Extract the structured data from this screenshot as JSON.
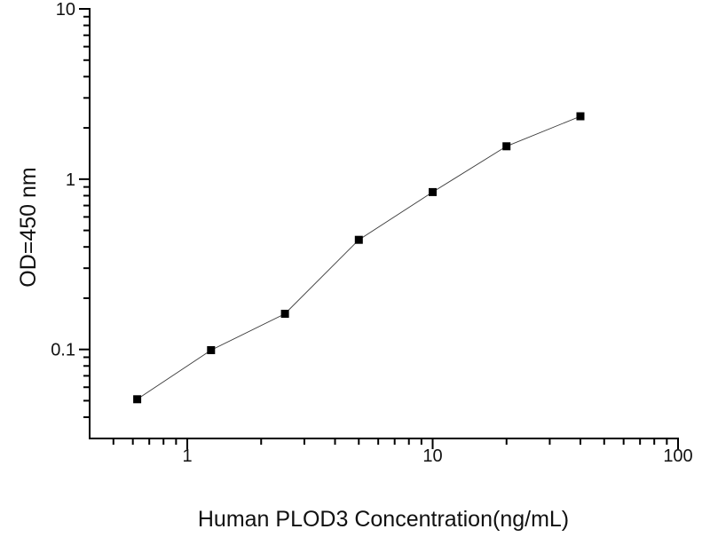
{
  "chart_data": {
    "type": "line",
    "x": [
      0.625,
      1.25,
      2.5,
      5,
      10,
      20,
      40
    ],
    "y": [
      0.051,
      0.099,
      0.162,
      0.44,
      0.84,
      1.56,
      2.34
    ],
    "title": "",
    "xlabel": "Human PLOD3 Concentration(ng/mL)",
    "ylabel": "OD=450 nm",
    "xscale": "log",
    "yscale": "log",
    "xlim": [
      0.4,
      100
    ],
    "ylim": [
      0.03,
      10
    ],
    "x_major_ticks": [
      1,
      10,
      100
    ],
    "x_major_tick_labels": [
      "1",
      "10",
      "100"
    ],
    "y_major_ticks": [
      0.1,
      1,
      10
    ],
    "y_major_tick_labels": [
      "0.1",
      "1",
      "10"
    ],
    "grid": false,
    "legend": false,
    "axis_color": "#000000",
    "marker": {
      "shape": "square",
      "size": 9,
      "color": "#000000"
    },
    "line": {
      "color": "#3a3a3a",
      "width": 0.9
    }
  }
}
